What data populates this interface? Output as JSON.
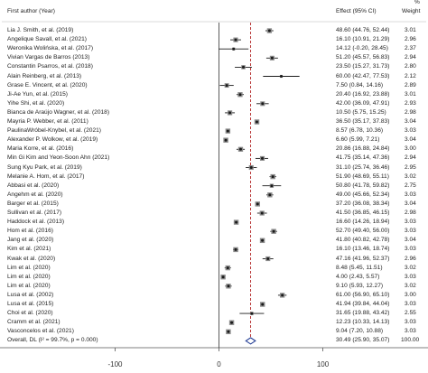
{
  "chart_data": {
    "type": "forest",
    "headers": {
      "study": "First author (Year)",
      "effect": "Effect (95% CI)",
      "weight_pct": "%",
      "weight": "Weight"
    },
    "xlim": [
      -100,
      100
    ],
    "ticks": [
      -100,
      0,
      100
    ],
    "reference_line": 30.49,
    "studies": [
      {
        "label": "Lia J. Smith, et al. (2019)",
        "est": 48.6,
        "lo": 44.76,
        "hi": 52.44,
        "ci": "48.60 (44.76, 52.44)",
        "weight": "3.01"
      },
      {
        "label": "Angelique Savall, et al. (2021)",
        "est": 16.1,
        "lo": 10.91,
        "hi": 21.29,
        "ci": "16.10 (10.91, 21.29)",
        "weight": "2.96"
      },
      {
        "label": "Weronika Wolińska, et al. (2017)",
        "est": 14.12,
        "lo": -0.2,
        "hi": 28.45,
        "ci": "14.12 (-0.20, 28.45)",
        "weight": "2.37"
      },
      {
        "label": "Vivian Vargas de Barros (2013)",
        "est": 51.2,
        "lo": 45.57,
        "hi": 56.83,
        "ci": "51.20 (45.57, 56.83)",
        "weight": "2.94"
      },
      {
        "label": "Constantin Psarros, et al. (2018)",
        "est": 23.5,
        "lo": 15.27,
        "hi": 31.73,
        "ci": "23.50 (15.27, 31.73)",
        "weight": "2.80"
      },
      {
        "label": "Alain Reinberg, et al. (2013)",
        "est": 60.0,
        "lo": 42.47,
        "hi": 77.53,
        "ci": "60.00 (42.47, 77.53)",
        "weight": "2.12"
      },
      {
        "label": "Grase E. Vincent, et al. (2020)",
        "est": 7.5,
        "lo": 0.84,
        "hi": 14.16,
        "ci": "7.50 (0.84, 14.16)",
        "weight": "2.89"
      },
      {
        "label": "Ji-Ae Yun, et al. (2015)",
        "est": 20.4,
        "lo": 16.92,
        "hi": 23.88,
        "ci": "20.40 (16.92, 23.88)",
        "weight": "3.01"
      },
      {
        "label": "Yihe Shi, et al. (2020)",
        "est": 42.0,
        "lo": 36.09,
        "hi": 47.91,
        "ci": "42.00 (36.09, 47.91)",
        "weight": "2.93"
      },
      {
        "label": "Bianca de Araújo Wagner, et al. (2018)",
        "est": 10.5,
        "lo": 5.75,
        "hi": 15.25,
        "ci": "10.50 (5.75, 15.25)",
        "weight": "2.98"
      },
      {
        "label": "Mayria P. Webber, et al. (2011)",
        "est": 36.5,
        "lo": 35.17,
        "hi": 37.83,
        "ci": "36.50 (35.17, 37.83)",
        "weight": "3.04"
      },
      {
        "label": "PaulinaWróbel-Knybel, et al. (2021)",
        "est": 8.57,
        "lo": 6.78,
        "hi": 10.36,
        "ci": "8.57 (6.78, 10.36)",
        "weight": "3.03"
      },
      {
        "label": "Alexander P. Wolkow, et al. (2019)",
        "est": 6.6,
        "lo": 5.99,
        "hi": 7.21,
        "ci": "6.60 (5.99, 7.21)",
        "weight": "3.04"
      },
      {
        "label": "Maria Korre, et al. (2016)",
        "est": 20.86,
        "lo": 16.88,
        "hi": 24.84,
        "ci": "20.86 (16.88, 24.84)",
        "weight": "3.00"
      },
      {
        "label": "Min Gi Kim and Yeon-Soon Ahn (2021)",
        "est": 41.75,
        "lo": 35.14,
        "hi": 47.36,
        "ci": "41.75 (35.14, 47.36)",
        "weight": "2.94"
      },
      {
        "label": "Sung Kyu Park, et al. (2019)",
        "est": 31.1,
        "lo": 25.74,
        "hi": 36.46,
        "ci": "31.10 (25.74, 36.46)",
        "weight": "2.95"
      },
      {
        "label": "Melanie A. Hom, et al. (2017)",
        "est": 51.9,
        "lo": 48.69,
        "hi": 55.11,
        "ci": "51.90 (48.69, 55.11)",
        "weight": "3.02"
      },
      {
        "label": "Abbasi et al. (2020)",
        "est": 50.8,
        "lo": 41.78,
        "hi": 59.82,
        "ci": "50.80 (41.78, 59.82)",
        "weight": "2.75"
      },
      {
        "label": "Angehm et al. (2020)",
        "est": 49.0,
        "lo": 45.66,
        "hi": 52.34,
        "ci": "49.00 (45.66, 52.34)",
        "weight": "3.03"
      },
      {
        "label": "Barger et al. (2015)",
        "est": 37.2,
        "lo": 36.08,
        "hi": 38.34,
        "ci": "37.20 (36.08, 38.34)",
        "weight": "3.04"
      },
      {
        "label": "Sullivan et al. (2017)",
        "est": 41.5,
        "lo": 36.85,
        "hi": 46.15,
        "ci": "41.50 (36.85, 46.15)",
        "weight": "2.98"
      },
      {
        "label": "Haddock et al. (2013)",
        "est": 16.6,
        "lo": 14.26,
        "hi": 18.94,
        "ci": "16.60 (14.26, 18.94)",
        "weight": "3.03"
      },
      {
        "label": "Hom et al. (2016)",
        "est": 52.7,
        "lo": 49.4,
        "hi": 56.0,
        "ci": "52.70 (49.40, 56.00)",
        "weight": "3.03"
      },
      {
        "label": "Jang et al. (2020)",
        "est": 41.8,
        "lo": 40.82,
        "hi": 42.78,
        "ci": "41.80 (40.82, 42.78)",
        "weight": "3.04"
      },
      {
        "label": "Kim et al. (2021)",
        "est": 16.1,
        "lo": 13.46,
        "hi": 18.74,
        "ci": "16.10 (13.46, 18.74)",
        "weight": "3.03"
      },
      {
        "label": "Kwak et al. (2020)",
        "est": 47.16,
        "lo": 41.96,
        "hi": 52.37,
        "ci": "47.16 (41.96, 52.37)",
        "weight": "2.96"
      },
      {
        "label": "Lim et al. (2020)",
        "est": 8.48,
        "lo": 5.45,
        "hi": 11.51,
        "ci": "8.48 (5.45, 11.51)",
        "weight": "3.02"
      },
      {
        "label": "Lim et al. (2020)",
        "est": 4.0,
        "lo": 2.43,
        "hi": 5.57,
        "ci": "4.00 (2.43, 5.57)",
        "weight": "3.03"
      },
      {
        "label": "Lim et al. (2020)",
        "est": 9.1,
        "lo": 5.93,
        "hi": 12.27,
        "ci": "9.10 (5.93, 12.27)",
        "weight": "3.02"
      },
      {
        "label": "Lusa et al. (2002)",
        "est": 61.0,
        "lo": 56.9,
        "hi": 65.1,
        "ci": "61.00 (56.90, 65.10)",
        "weight": "3.00"
      },
      {
        "label": "Lusa et al. (2015)",
        "est": 41.94,
        "lo": 39.84,
        "hi": 44.04,
        "ci": "41.94 (39.84, 44.04)",
        "weight": "3.03"
      },
      {
        "label": "Choi et al. (2020)",
        "est": 31.65,
        "lo": 19.88,
        "hi": 43.42,
        "ci": "31.65 (19.88, 43.42)",
        "weight": "2.55"
      },
      {
        "label": "Cramm et al. (2021)",
        "est": 12.23,
        "lo": 10.33,
        "hi": 14.13,
        "ci": "12.23 (10.33, 14.13)",
        "weight": "3.03"
      },
      {
        "label": "Vasconcelos et al. (2021)",
        "est": 9.04,
        "lo": 7.2,
        "hi": 10.88,
        "ci": "9.04 (7.20, 10.88)",
        "weight": "3.03"
      }
    ],
    "overall": {
      "label": "Overall, DL (I² = 99.7%, p = 0.000)",
      "est": 30.49,
      "lo": 25.9,
      "hi": 35.07,
      "ci": "30.49 (25.90, 35.07)",
      "weight": "100.00"
    },
    "colors": {
      "marker": "#1a1a1a",
      "diamond": "#1f3a93",
      "ref_line": "#b22222",
      "axis": "#555555"
    }
  }
}
